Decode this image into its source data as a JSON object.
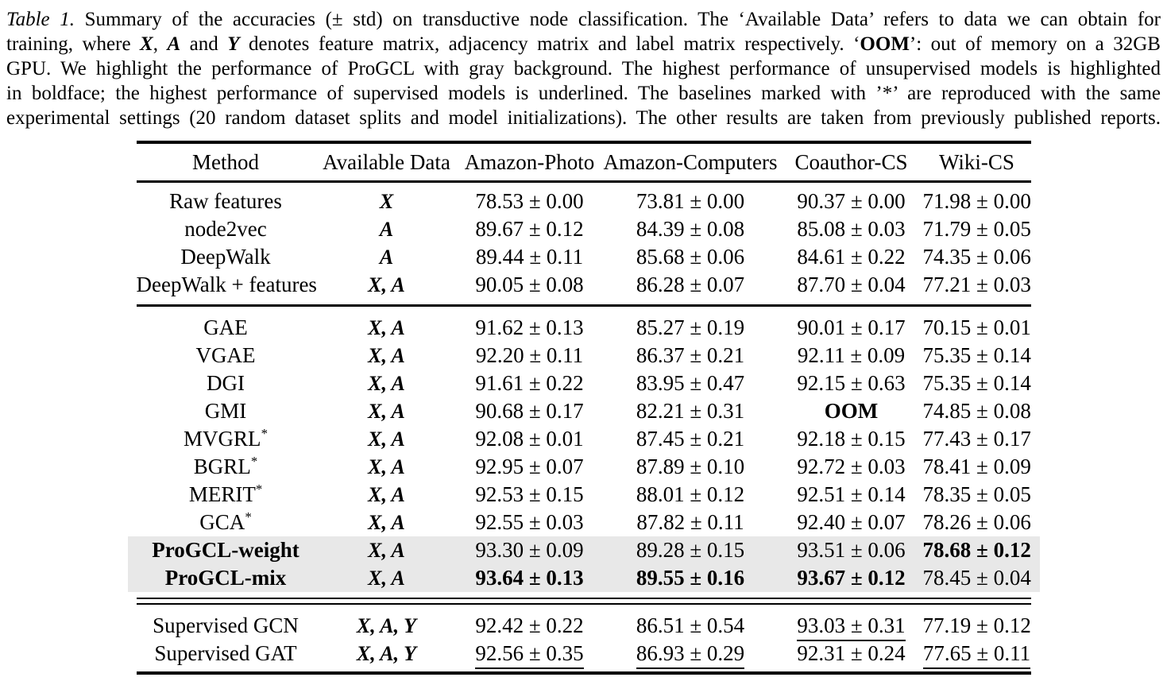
{
  "colors": {
    "page_bg": "#ffffff",
    "text": "#000000",
    "highlight_bg": "#e8e8e8"
  },
  "caption": {
    "lines": [
      {
        "segments": [
          {
            "t": "Table 1.",
            "s": "i"
          },
          {
            "t": " Summary of the accuracies (± std) on transductive node classification. The ‘Available Data’ refers to data we can obtain for",
            "s": ""
          }
        ]
      },
      {
        "segments": [
          {
            "t": "training, where ",
            "s": ""
          },
          {
            "t": "X",
            "s": "m"
          },
          {
            "t": ", ",
            "s": ""
          },
          {
            "t": "A",
            "s": "m"
          },
          {
            "t": " and ",
            "s": ""
          },
          {
            "t": "Y",
            "s": "m"
          },
          {
            "t": " denotes feature matrix, adjacency matrix and label matrix respectively. ‘",
            "s": ""
          },
          {
            "t": "OOM",
            "s": "b"
          },
          {
            "t": "’: out of memory on a 32GB",
            "s": ""
          }
        ]
      },
      {
        "segments": [
          {
            "t": "GPU. We highlight the performance of ProGCL with gray background. The highest performance of unsupervised models is highlighted",
            "s": ""
          }
        ]
      },
      {
        "segments": [
          {
            "t": "in boldface; the highest performance of supervised models is underlined. The baselines marked with ’*’ are reproduced with the same",
            "s": ""
          }
        ]
      },
      {
        "segments": [
          {
            "t": "experimental settings (20 random dataset splits and model initializations). The other results are taken from previously published reports.",
            "s": ""
          }
        ]
      }
    ]
  },
  "table": {
    "columns": [
      "Method",
      "Available Data",
      "Amazon-Photo",
      "Amazon-Computers",
      "Coauthor-CS",
      "Wiki-CS"
    ],
    "groups": [
      {
        "rows": [
          {
            "method": "Raw features",
            "sup": "",
            "method_bold": false,
            "highlight": false,
            "available": "X",
            "cells": [
              {
                "v": "78.53 ± 0.00"
              },
              {
                "v": "73.81 ± 0.00"
              },
              {
                "v": "90.37 ± 0.00"
              },
              {
                "v": "71.98 ± 0.00"
              }
            ]
          },
          {
            "method": "node2vec",
            "sup": "",
            "method_bold": false,
            "highlight": false,
            "available": "A",
            "cells": [
              {
                "v": "89.67 ± 0.12"
              },
              {
                "v": "84.39 ± 0.08"
              },
              {
                "v": "85.08 ± 0.03"
              },
              {
                "v": "71.79 ± 0.05"
              }
            ]
          },
          {
            "method": "DeepWalk",
            "sup": "",
            "method_bold": false,
            "highlight": false,
            "available": "A",
            "cells": [
              {
                "v": "89.44 ± 0.11"
              },
              {
                "v": "85.68 ± 0.06"
              },
              {
                "v": "84.61 ± 0.22"
              },
              {
                "v": "74.35 ± 0.06"
              }
            ]
          },
          {
            "method": "DeepWalk + features",
            "sup": "",
            "method_bold": false,
            "highlight": false,
            "available": "X, A",
            "cells": [
              {
                "v": "90.05 ± 0.08"
              },
              {
                "v": "86.28 ± 0.07"
              },
              {
                "v": "87.70 ± 0.04"
              },
              {
                "v": "77.21 ± 0.03"
              }
            ]
          }
        ]
      },
      {
        "rows": [
          {
            "method": "GAE",
            "sup": "",
            "method_bold": false,
            "highlight": false,
            "available": "X, A",
            "cells": [
              {
                "v": "91.62 ± 0.13"
              },
              {
                "v": "85.27 ± 0.19"
              },
              {
                "v": "90.01 ± 0.17"
              },
              {
                "v": "70.15 ± 0.01"
              }
            ]
          },
          {
            "method": "VGAE",
            "sup": "",
            "method_bold": false,
            "highlight": false,
            "available": "X, A",
            "cells": [
              {
                "v": "92.20 ± 0.11"
              },
              {
                "v": "86.37 ± 0.21"
              },
              {
                "v": "92.11 ± 0.09"
              },
              {
                "v": "75.35 ± 0.14"
              }
            ]
          },
          {
            "method": "DGI",
            "sup": "",
            "method_bold": false,
            "highlight": false,
            "available": "X, A",
            "cells": [
              {
                "v": "91.61 ± 0.22"
              },
              {
                "v": "83.95 ± 0.47"
              },
              {
                "v": "92.15 ± 0.63"
              },
              {
                "v": "75.35 ± 0.14"
              }
            ]
          },
          {
            "method": "GMI",
            "sup": "",
            "method_bold": false,
            "highlight": false,
            "available": "X, A",
            "cells": [
              {
                "v": "90.68 ± 0.17"
              },
              {
                "v": "82.21 ± 0.31"
              },
              {
                "v": "OOM",
                "b": true
              },
              {
                "v": "74.85 ± 0.08"
              }
            ]
          },
          {
            "method": "MVGRL",
            "sup": "*",
            "method_bold": false,
            "highlight": false,
            "available": "X, A",
            "cells": [
              {
                "v": "92.08 ± 0.01"
              },
              {
                "v": "87.45 ± 0.21"
              },
              {
                "v": "92.18 ± 0.15"
              },
              {
                "v": "77.43 ± 0.17"
              }
            ]
          },
          {
            "method": "BGRL",
            "sup": "*",
            "method_bold": false,
            "highlight": false,
            "available": "X, A",
            "cells": [
              {
                "v": "92.95 ± 0.07"
              },
              {
                "v": "87.89 ± 0.10"
              },
              {
                "v": "92.72 ± 0.03"
              },
              {
                "v": "78.41 ± 0.09"
              }
            ]
          },
          {
            "method": "MERIT",
            "sup": "*",
            "method_bold": false,
            "highlight": false,
            "available": "X, A",
            "cells": [
              {
                "v": "92.53 ± 0.15"
              },
              {
                "v": "88.01 ± 0.12"
              },
              {
                "v": "92.51 ± 0.14"
              },
              {
                "v": "78.35 ± 0.05"
              }
            ]
          },
          {
            "method": "GCA",
            "sup": "*",
            "method_bold": false,
            "highlight": false,
            "available": "X, A",
            "cells": [
              {
                "v": "92.55 ± 0.03"
              },
              {
                "v": "87.82 ± 0.11"
              },
              {
                "v": "92.40 ± 0.07"
              },
              {
                "v": "78.26 ± 0.06"
              }
            ]
          },
          {
            "method": "ProGCL-weight",
            "sup": "",
            "method_bold": true,
            "highlight": true,
            "available": "X, A",
            "cells": [
              {
                "v": "93.30 ± 0.09"
              },
              {
                "v": "89.28 ± 0.15"
              },
              {
                "v": "93.51 ± 0.06"
              },
              {
                "v": "78.68 ± 0.12",
                "b": true
              }
            ]
          },
          {
            "method": "ProGCL-mix",
            "sup": "",
            "method_bold": true,
            "highlight": true,
            "available": "X, A",
            "cells": [
              {
                "v": "93.64 ± 0.13",
                "b": true
              },
              {
                "v": "89.55 ± 0.16",
                "b": true
              },
              {
                "v": "93.67 ± 0.12",
                "b": true
              },
              {
                "v": "78.45 ± 0.04"
              }
            ]
          }
        ]
      },
      {
        "rows": [
          {
            "method": "Supervised GCN",
            "sup": "",
            "method_bold": false,
            "highlight": false,
            "available": "X, A, Y",
            "cells": [
              {
                "v": "92.42 ± 0.22"
              },
              {
                "v": "86.51 ± 0.54"
              },
              {
                "v": "93.03 ± 0.31",
                "u": true
              },
              {
                "v": "77.19 ± 0.12"
              }
            ]
          },
          {
            "method": "Supervised GAT",
            "sup": "",
            "method_bold": false,
            "highlight": false,
            "available": "X, A, Y",
            "cells": [
              {
                "v": "92.56 ± 0.35",
                "u": true
              },
              {
                "v": "86.93 ± 0.29",
                "u": true
              },
              {
                "v": "92.31 ± 0.24"
              },
              {
                "v": "77.65 ± 0.11",
                "u": true
              }
            ]
          }
        ]
      }
    ]
  }
}
